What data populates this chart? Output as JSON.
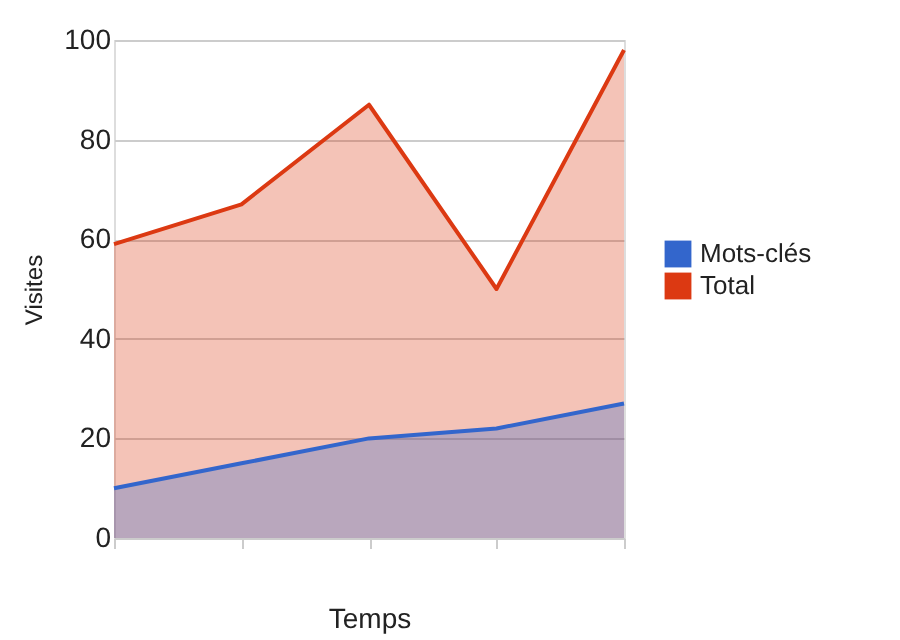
{
  "chart_data": {
    "type": "area",
    "xlabel": "Temps",
    "ylabel": "Visites",
    "categories": [
      null,
      null,
      null,
      null,
      null
    ],
    "series": [
      {
        "name": "Mots-clés",
        "color": "#3366cc",
        "values": [
          10,
          15,
          20,
          22,
          27
        ]
      },
      {
        "name": "Total",
        "color": "#dc3912",
        "values": [
          59,
          67,
          87,
          50,
          98
        ]
      }
    ],
    "ylim": [
      0,
      100
    ],
    "yticks": [
      0,
      20,
      40,
      60,
      80,
      100
    ],
    "grid": "y",
    "legend": "right",
    "tick_labels": "y"
  }
}
